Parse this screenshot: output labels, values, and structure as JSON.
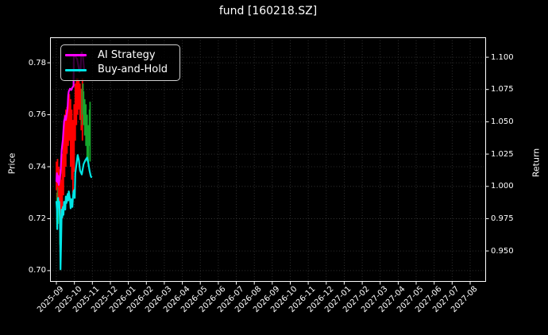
{
  "chart_data": {
    "type": "line",
    "title": "fund [160218.SZ]",
    "grid": true,
    "background": "#000000",
    "colors": {
      "text": "#ffffff",
      "grid": "#3d3d3d",
      "spine": "#ffffff",
      "ai_strategy": "#FF00FF",
      "buy_and_hold": "#00E5E5",
      "bar_up": "#17A62C",
      "bar_down": "#FF0000"
    },
    "left_axis": {
      "label": "Price",
      "tick_labels": [
        "0.78",
        "0.76",
        "0.74",
        "0.72",
        "0.70"
      ],
      "tick_values": [
        0.78,
        0.76,
        0.74,
        0.72,
        0.7
      ],
      "range": [
        0.6957,
        0.7898
      ]
    },
    "right_axis": {
      "label": "Return",
      "tick_labels": [
        "1.100",
        "1.075",
        "1.050",
        "1.025",
        "1.000",
        "0.975",
        "0.950"
      ],
      "tick_values": [
        1.1,
        1.075,
        1.05,
        1.025,
        1.0,
        0.975,
        0.95
      ],
      "range": [
        0.9261,
        1.1154
      ]
    },
    "x_axis": {
      "tick_labels": [
        "2025-09",
        "2025-10",
        "2025-11",
        "2025-12",
        "2026-01",
        "2026-02",
        "2026-03",
        "2026-04",
        "2026-05",
        "2026-06",
        "2026-07",
        "2026-08",
        "2026-09",
        "2026-10",
        "2026-11",
        "2026-12",
        "2027-01",
        "2027-02",
        "2027-03",
        "2027-04",
        "2027-05",
        "2027-06",
        "2027-07",
        "2027-08"
      ],
      "day_origin": "2025-09-01",
      "rotation_deg": 45
    },
    "legend": {
      "position": "upper-left",
      "items": [
        "AI Strategy",
        "Buy-and-Hold"
      ]
    },
    "series": [
      {
        "name": "AI Strategy",
        "color": "#FF00FF",
        "axis": "price-left",
        "points": [
          [
            0,
            0.7345
          ],
          [
            1,
            0.7375
          ],
          [
            2,
            0.734
          ],
          [
            3,
            0.7365
          ],
          [
            4,
            0.733
          ],
          [
            5,
            0.7345
          ],
          [
            7,
            0.7375
          ],
          [
            8,
            0.7425
          ],
          [
            9,
            0.7465
          ],
          [
            11,
            0.7505
          ],
          [
            12,
            0.754
          ],
          [
            13,
            0.7575
          ],
          [
            15,
            0.7595
          ],
          [
            16,
            0.758
          ],
          [
            17,
            0.7595
          ],
          [
            19,
            0.7625
          ],
          [
            20,
            0.7675
          ],
          [
            21,
            0.769
          ],
          [
            23,
            0.77
          ],
          [
            25,
            0.7695
          ],
          [
            27,
            0.7705
          ],
          [
            29,
            0.771
          ],
          [
            29.5,
            0.7825
          ],
          [
            32,
            0.7825
          ],
          [
            35,
            0.7815
          ],
          [
            37,
            0.779
          ],
          [
            39,
            0.7765
          ],
          [
            41,
            0.7775
          ],
          [
            42,
            0.7835
          ],
          [
            43,
            0.784
          ],
          [
            45,
            0.7825
          ],
          [
            47,
            0.777
          ]
        ]
      },
      {
        "name": "Buy-and-Hold",
        "color": "#00E5E5",
        "axis": "price-left",
        "points": [
          [
            0,
            0.7265
          ],
          [
            1,
            0.7235
          ],
          [
            1.5,
            0.716
          ],
          [
            2,
            0.7235
          ],
          [
            3,
            0.728
          ],
          [
            4,
            0.7245
          ],
          [
            5,
            0.7265
          ],
          [
            6,
            0.718
          ],
          [
            7,
            0.7005
          ],
          [
            8,
            0.712
          ],
          [
            9,
            0.7235
          ],
          [
            10,
            0.7205
          ],
          [
            11,
            0.7245
          ],
          [
            12,
            0.7215
          ],
          [
            13,
            0.7265
          ],
          [
            15,
            0.7235
          ],
          [
            16,
            0.7285
          ],
          [
            17,
            0.726
          ],
          [
            19,
            0.7295
          ],
          [
            20,
            0.727
          ],
          [
            21,
            0.7305
          ],
          [
            23,
            0.7275
          ],
          [
            24,
            0.724
          ],
          [
            25,
            0.7275
          ],
          [
            27,
            0.7245
          ],
          [
            28,
            0.7285
          ],
          [
            29,
            0.7305
          ],
          [
            30,
            0.731
          ],
          [
            31,
            0.728
          ],
          [
            32,
            0.7375
          ],
          [
            34,
            0.741
          ],
          [
            36,
            0.7445
          ],
          [
            38,
            0.7425
          ],
          [
            40,
            0.7385
          ],
          [
            43,
            0.737
          ],
          [
            44,
            0.7385
          ],
          [
            46,
            0.741
          ],
          [
            49,
            0.7425
          ],
          [
            52,
            0.7435
          ],
          [
            54,
            0.7415
          ],
          [
            56,
            0.7385
          ],
          [
            58,
            0.7365
          ],
          [
            59,
            0.736
          ]
        ]
      }
    ],
    "price_range_bars": {
      "down_color": "#FF0000",
      "up_color": "#17A62C",
      "bars": [
        {
          "day": 0,
          "low": 0.731,
          "high": 0.742,
          "dir": "down"
        },
        {
          "day": 1,
          "low": 0.716,
          "high": 0.73,
          "dir": "up"
        },
        {
          "day": 2,
          "low": 0.728,
          "high": 0.743,
          "dir": "down"
        },
        {
          "day": 3,
          "low": 0.718,
          "high": 0.732,
          "dir": "up"
        },
        {
          "day": 4,
          "low": 0.7255,
          "high": 0.74,
          "dir": "down"
        },
        {
          "day": 5,
          "low": 0.723,
          "high": 0.739,
          "dir": "down"
        },
        {
          "day": 6,
          "low": 0.71,
          "high": 0.725,
          "dir": "up"
        },
        {
          "day": 7,
          "low": 0.703,
          "high": 0.737,
          "dir": "down"
        },
        {
          "day": 8,
          "low": 0.712,
          "high": 0.735,
          "dir": "down"
        },
        {
          "day": 10,
          "low": 0.72,
          "high": 0.745,
          "dir": "down"
        },
        {
          "day": 12,
          "low": 0.729,
          "high": 0.755,
          "dir": "down"
        },
        {
          "day": 14,
          "low": 0.736,
          "high": 0.76,
          "dir": "down"
        },
        {
          "day": 16,
          "low": 0.74,
          "high": 0.762,
          "dir": "down"
        },
        {
          "day": 18,
          "low": 0.745,
          "high": 0.763,
          "dir": "down"
        },
        {
          "day": 20,
          "low": 0.748,
          "high": 0.766,
          "dir": "down"
        },
        {
          "day": 22,
          "low": 0.75,
          "high": 0.768,
          "dir": "down"
        },
        {
          "day": 24,
          "low": 0.74,
          "high": 0.766,
          "dir": "down"
        },
        {
          "day": 26,
          "low": 0.735,
          "high": 0.762,
          "dir": "down"
        },
        {
          "day": 28,
          "low": 0.73,
          "high": 0.758,
          "dir": "down"
        },
        {
          "day": 30,
          "low": 0.738,
          "high": 0.764,
          "dir": "down"
        },
        {
          "day": 32,
          "low": 0.75,
          "high": 0.772,
          "dir": "down"
        },
        {
          "day": 34,
          "low": 0.756,
          "high": 0.774,
          "dir": "down"
        },
        {
          "day": 36,
          "low": 0.76,
          "high": 0.774,
          "dir": "down"
        },
        {
          "day": 38,
          "low": 0.762,
          "high": 0.773,
          "dir": "down"
        },
        {
          "day": 40,
          "low": 0.758,
          "high": 0.772,
          "dir": "down"
        },
        {
          "day": 42,
          "low": 0.754,
          "high": 0.77,
          "dir": "down"
        },
        {
          "day": 43,
          "low": 0.756,
          "high": 0.77,
          "dir": "up"
        },
        {
          "day": 44,
          "low": 0.75,
          "high": 0.774,
          "dir": "down"
        },
        {
          "day": 45,
          "low": 0.76,
          "high": 0.772,
          "dir": "up"
        },
        {
          "day": 46,
          "low": 0.756,
          "high": 0.769,
          "dir": "up"
        },
        {
          "day": 48,
          "low": 0.752,
          "high": 0.766,
          "dir": "up"
        },
        {
          "day": 50,
          "low": 0.748,
          "high": 0.764,
          "dir": "up"
        },
        {
          "day": 52,
          "low": 0.742,
          "high": 0.76,
          "dir": "up"
        },
        {
          "day": 54,
          "low": 0.74,
          "high": 0.756,
          "dir": "up"
        },
        {
          "day": 56,
          "low": 0.748,
          "high": 0.762,
          "dir": "up"
        },
        {
          "day": 57,
          "low": 0.742,
          "high": 0.765,
          "dir": "up"
        }
      ]
    }
  }
}
